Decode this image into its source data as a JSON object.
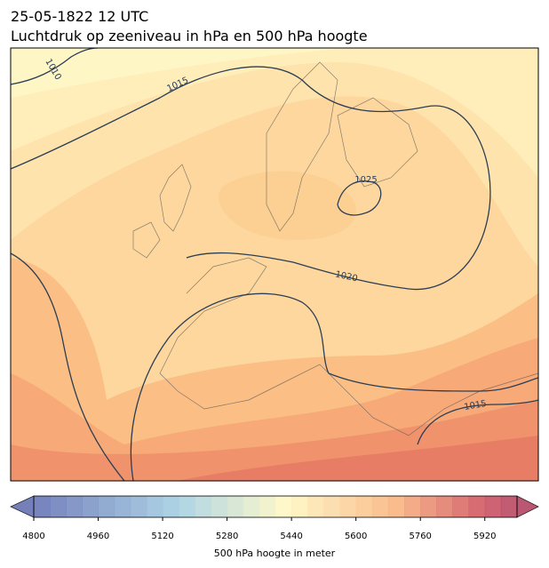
{
  "header": {
    "title": "25-05-1822 12 UTC",
    "subtitle": "Luchtdruk op zeeniveau in hPa en 500 hPa hoogte"
  },
  "contour_labels": [
    1010,
    1015,
    1025,
    1020,
    1015
  ],
  "colorbar": {
    "label": "500 hPa hoogte in meter",
    "lim": [
      4800,
      6000
    ],
    "ticks": [
      4800,
      4960,
      5120,
      5280,
      5440,
      5600,
      5760,
      5920
    ]
  }
}
